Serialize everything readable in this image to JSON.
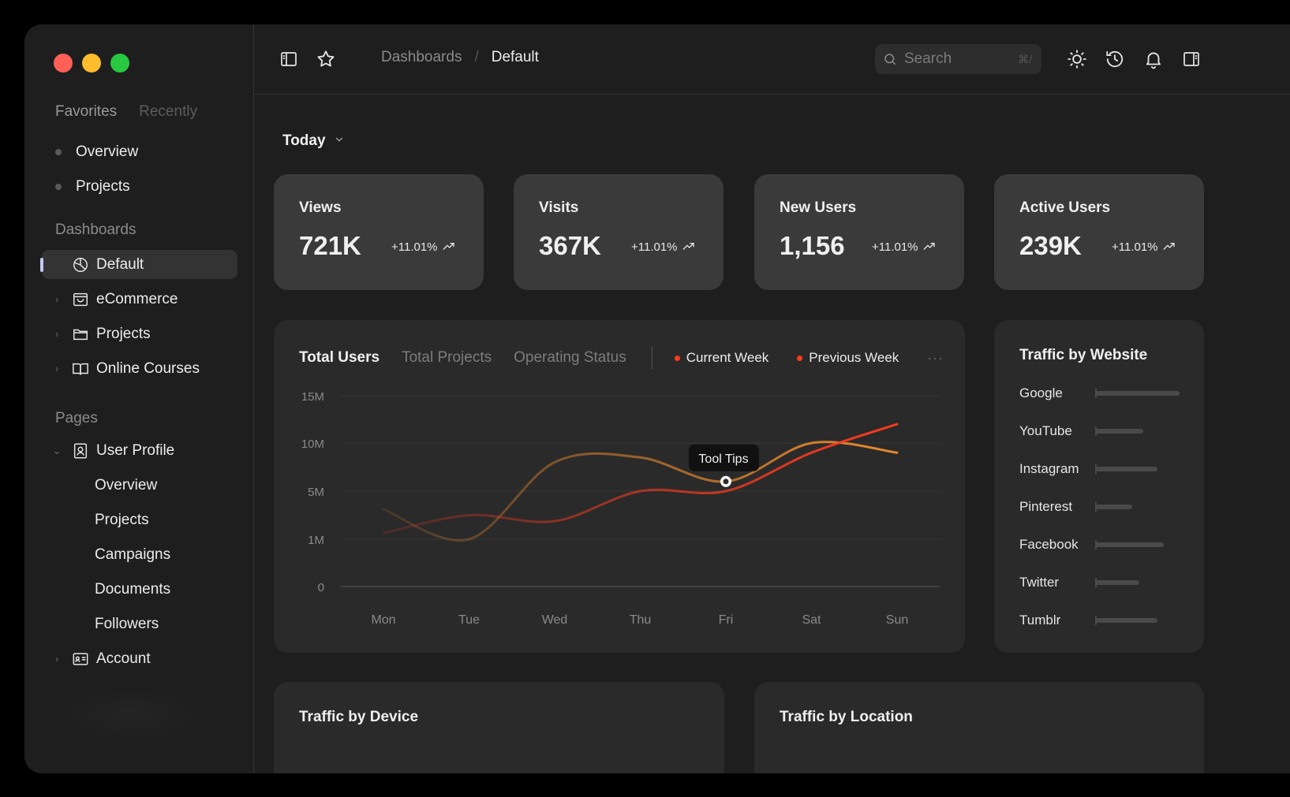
{
  "window": {
    "traffic_lights": [
      {
        "name": "close",
        "color": "#fe5f57"
      },
      {
        "name": "minimize",
        "color": "#febc2e"
      },
      {
        "name": "maximize",
        "color": "#28c840"
      }
    ]
  },
  "sidebar": {
    "tabs": {
      "favorites": "Favorites",
      "recently": "Recently"
    },
    "favorites": [
      "Overview",
      "Projects"
    ],
    "dashboards_label": "Dashboards",
    "dashboards": [
      {
        "label": "Default",
        "icon": "pie-chart-icon",
        "active": true
      },
      {
        "label": "eCommerce",
        "icon": "shopping-bag-icon"
      },
      {
        "label": "Projects",
        "icon": "folder-icon"
      },
      {
        "label": "Online Courses",
        "icon": "book-open-icon"
      }
    ],
    "pages_label": "Pages",
    "pages": {
      "user_profile": {
        "label": "User Profile",
        "icon": "user-profile-icon",
        "children": [
          "Overview",
          "Projects",
          "Campaigns",
          "Documents",
          "Followers"
        ]
      },
      "account": {
        "label": "Account",
        "icon": "id-card-icon"
      }
    }
  },
  "topbar": {
    "icons": [
      "sidebar-toggle-icon",
      "star-icon",
      "sun-icon",
      "history-icon",
      "bell-icon",
      "right-panel-icon"
    ],
    "breadcrumb": {
      "parent": "Dashboards",
      "separator": "/",
      "current": "Default"
    },
    "search": {
      "placeholder": "Search",
      "shortcut": "⌘/"
    }
  },
  "main": {
    "period": "Today",
    "stats": [
      {
        "label": "Views",
        "value": "721K",
        "change": "+11.01%"
      },
      {
        "label": "Visits",
        "value": "367K",
        "change": "+11.01%"
      },
      {
        "label": "New Users",
        "value": "1,156",
        "change": "+11.01%"
      },
      {
        "label": "Active Users",
        "value": "239K",
        "change": "+11.01%"
      }
    ],
    "chart_tabs": [
      "Total Users",
      "Total Projects",
      "Operating Status"
    ],
    "legend": [
      {
        "label": "Current Week",
        "color": "#ff3b1f"
      },
      {
        "label": "Previous Week",
        "color": "#ff3b1f"
      }
    ],
    "more": "···",
    "tooltip": "Tool Tips",
    "traffic_by_website": {
      "title": "Traffic by Website",
      "sites": [
        {
          "name": "Google",
          "share": 1.0
        },
        {
          "name": "YouTube",
          "share": 0.57
        },
        {
          "name": "Instagram",
          "share": 0.74
        },
        {
          "name": "Pinterest",
          "share": 0.44
        },
        {
          "name": "Facebook",
          "share": 0.81
        },
        {
          "name": "Twitter",
          "share": 0.52
        },
        {
          "name": "Tumblr",
          "share": 0.74
        }
      ]
    },
    "traffic_by_device": {
      "title": "Traffic by Device"
    },
    "traffic_by_location": {
      "title": "Traffic by Location"
    }
  },
  "chart_data": {
    "type": "line",
    "categories": [
      "Mon",
      "Tue",
      "Wed",
      "Thu",
      "Fri",
      "Sat",
      "Sun"
    ],
    "y_ticks": [
      "0",
      "1M",
      "5M",
      "10M",
      "15M"
    ],
    "series": [
      {
        "name": "Current Week",
        "color": "#ff3b1f",
        "values": [
          1.5,
          3.0,
          2.5,
          5.0,
          5.0,
          9.0,
          12.0
        ]
      },
      {
        "name": "Previous Week",
        "color": "#e8892e",
        "values": [
          3.5,
          1.0,
          8.0,
          8.5,
          6.0,
          10.0,
          9.0
        ]
      }
    ],
    "grid": true,
    "tooltip_at": "Fri"
  }
}
